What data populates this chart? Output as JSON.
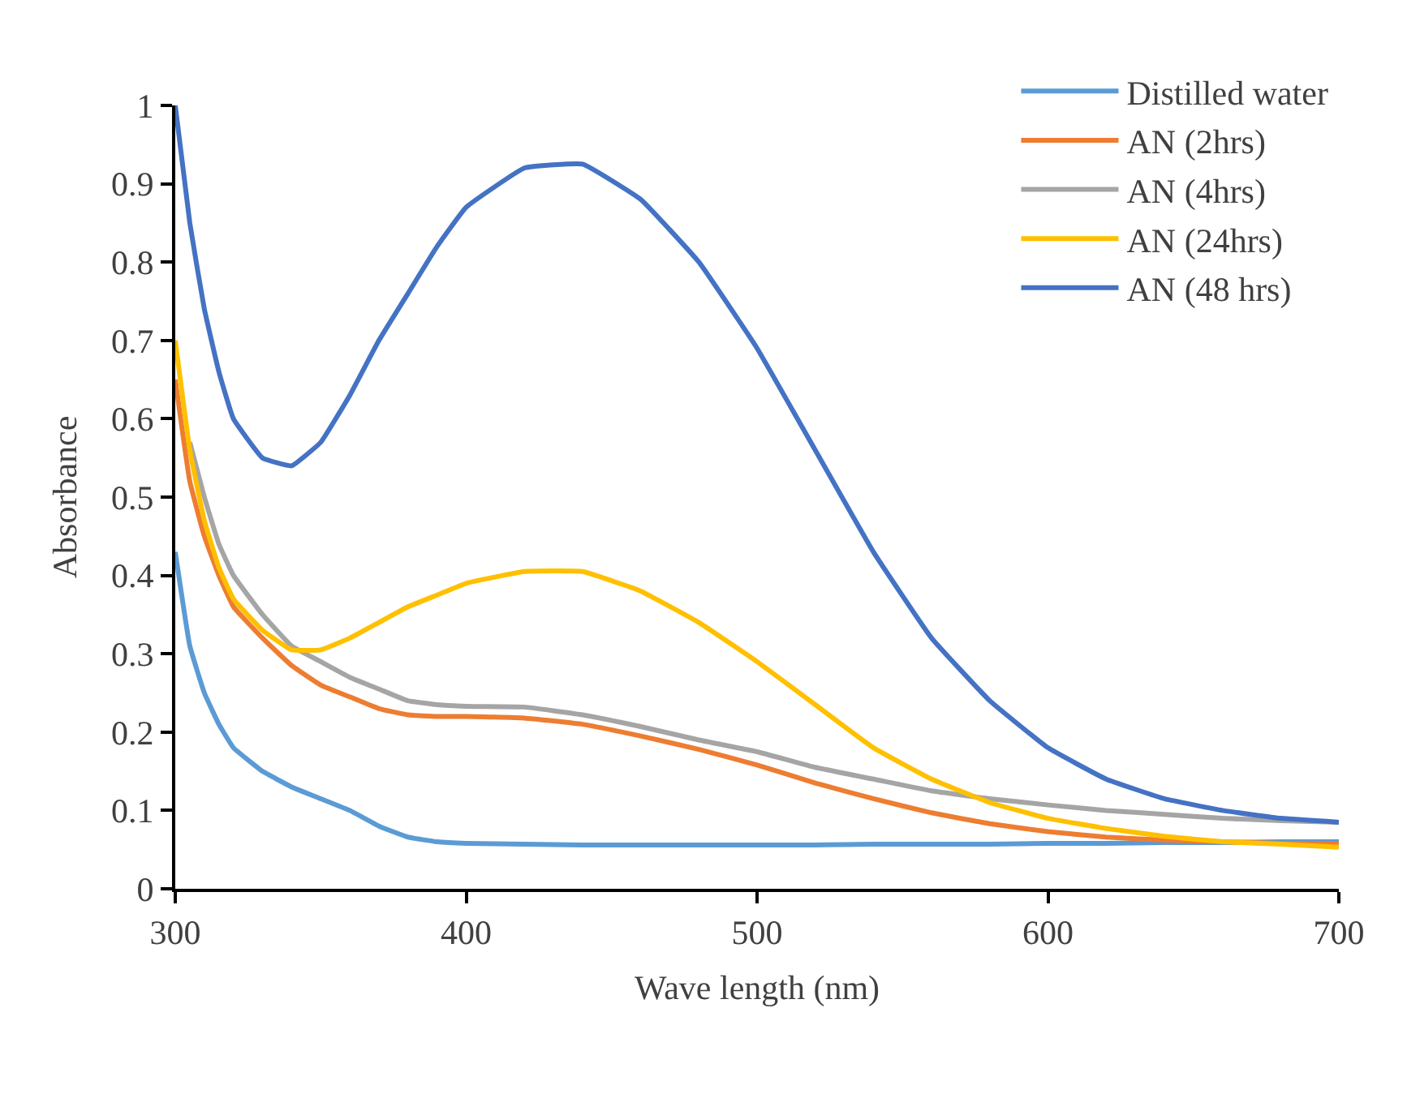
{
  "chart_data": {
    "type": "line",
    "xlabel": "Wave length (nm)",
    "ylabel": "Absorbance",
    "x": [
      300,
      305,
      310,
      315,
      320,
      330,
      340,
      350,
      360,
      370,
      380,
      390,
      400,
      420,
      440,
      460,
      480,
      500,
      520,
      540,
      560,
      580,
      600,
      620,
      640,
      660,
      680,
      700
    ],
    "series": [
      {
        "name": "Distilled water",
        "color": "#5b9bd5",
        "values": [
          0.43,
          0.31,
          0.25,
          0.21,
          0.18,
          0.15,
          0.13,
          0.115,
          0.1,
          0.08,
          0.066,
          0.06,
          0.058,
          0.057,
          0.056,
          0.056,
          0.056,
          0.056,
          0.056,
          0.057,
          0.057,
          0.057,
          0.058,
          0.058,
          0.059,
          0.059,
          0.06,
          0.06
        ]
      },
      {
        "name": "AN (2hrs)",
        "color": "#ed7d31",
        "values": [
          0.65,
          0.52,
          0.45,
          0.4,
          0.36,
          0.32,
          0.285,
          0.26,
          0.245,
          0.23,
          0.222,
          0.22,
          0.22,
          0.218,
          0.21,
          0.195,
          0.178,
          0.158,
          0.135,
          0.115,
          0.097,
          0.083,
          0.073,
          0.066,
          0.062,
          0.06,
          0.058,
          0.057
        ]
      },
      {
        "name": "AN (4hrs)",
        "color": "#a5a5a5",
        "values": [
          null,
          0.57,
          0.5,
          0.44,
          0.4,
          0.35,
          0.31,
          0.29,
          0.27,
          0.255,
          0.24,
          0.235,
          0.233,
          0.232,
          0.222,
          0.207,
          0.19,
          0.175,
          0.155,
          0.14,
          0.125,
          0.115,
          0.107,
          0.1,
          0.095,
          0.09,
          0.087,
          0.085
        ]
      },
      {
        "name": "AN (24hrs)",
        "color": "#ffc000",
        "values": [
          0.7,
          0.56,
          0.47,
          0.41,
          0.37,
          0.33,
          0.305,
          0.305,
          0.32,
          0.34,
          0.36,
          0.375,
          0.39,
          0.405,
          0.405,
          0.38,
          0.34,
          0.29,
          0.235,
          0.18,
          0.14,
          0.11,
          0.09,
          0.077,
          0.067,
          0.06,
          0.057,
          0.053
        ]
      },
      {
        "name": "AN (48 hrs)",
        "color": "#4472c4",
        "values": [
          1.0,
          0.85,
          0.74,
          0.66,
          0.6,
          0.55,
          0.54,
          0.57,
          0.63,
          0.7,
          0.76,
          0.82,
          0.87,
          0.92,
          0.925,
          0.88,
          0.8,
          0.69,
          0.56,
          0.43,
          0.32,
          0.24,
          0.18,
          0.14,
          0.115,
          0.1,
          0.09,
          0.085
        ]
      }
    ],
    "xlim": [
      300,
      700
    ],
    "xticks": [
      300,
      400,
      500,
      600,
      700
    ],
    "ylim": [
      0,
      1
    ],
    "yticks": [
      0,
      0.1,
      0.2,
      0.3,
      0.4,
      0.5,
      0.6,
      0.7,
      0.8,
      0.9,
      1
    ],
    "grid": false,
    "legend": "top right",
    "marker": "none",
    "line_style": "solid"
  }
}
